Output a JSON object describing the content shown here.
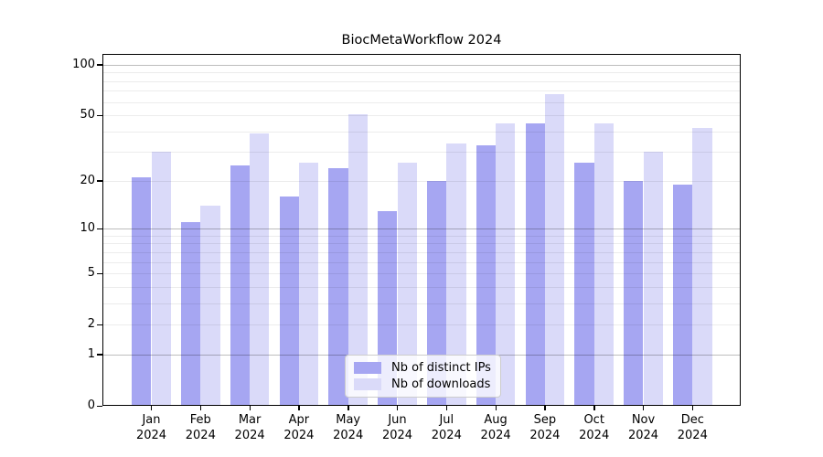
{
  "title": "BiocMetaWorkflow 2024",
  "chart_data": {
    "type": "bar",
    "title": "BiocMetaWorkflow 2024",
    "scale": "log1p (y position proportional to log10(1+value))",
    "categories": [
      "Jan",
      "Feb",
      "Mar",
      "Apr",
      "May",
      "Jun",
      "Jul",
      "Aug",
      "Sep",
      "Oct",
      "Nov",
      "Dec"
    ],
    "category_year": "2024",
    "series": [
      {
        "name": "Nb of distinct IPs",
        "color": "#a6a6f2",
        "values": [
          21,
          11,
          25,
          16,
          24,
          13,
          20,
          33,
          45,
          26,
          20,
          19
        ]
      },
      {
        "name": "Nb of downloads",
        "color": "#dadaf9",
        "values": [
          30,
          14,
          39,
          26,
          51,
          26,
          34,
          45,
          67,
          45,
          30,
          42
        ]
      }
    ],
    "xlabel": "",
    "ylabel": "",
    "y_ticks": [
      "0",
      "1",
      "2",
      "5",
      "10",
      "20",
      "50",
      "100"
    ],
    "y_tick_values": [
      0,
      1,
      2,
      5,
      10,
      20,
      50,
      100
    ],
    "ylim": [
      0,
      116
    ],
    "grid": {
      "major_lines": [
        1,
        10,
        100
      ],
      "minor_lines": [
        2,
        3,
        4,
        5,
        6,
        7,
        8,
        9,
        20,
        30,
        40,
        50,
        60,
        70,
        80,
        90
      ]
    },
    "legend_position": "bottom-center",
    "legend_entries": [
      "Nb of distinct IPs",
      "Nb of downloads"
    ]
  },
  "colors": {
    "background": "#ffffff",
    "axis": "#000000",
    "distinct_ips_bar": "#a6a6f2",
    "downloads_bar": "#dadaf9",
    "grid_major": "#bdbdbd",
    "grid_minor": "#ececec",
    "legend_border": "#cccccc"
  }
}
